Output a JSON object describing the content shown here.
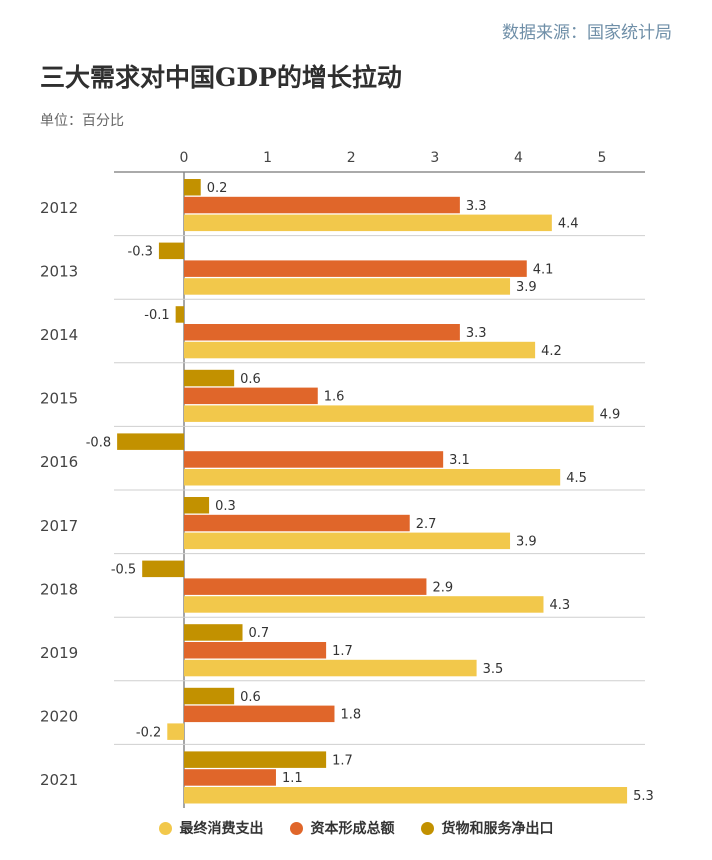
{
  "source": "数据来源：国家统计局",
  "chart_data": {
    "type": "bar",
    "orientation": "horizontal",
    "title": "三大需求对中国GDP的增长拉动",
    "unit_label": "单位：百分比",
    "categories": [
      "2012",
      "2013",
      "2014",
      "2015",
      "2016",
      "2017",
      "2018",
      "2019",
      "2020",
      "2021"
    ],
    "xlim": [
      -0.8,
      5.5
    ],
    "xticks": [
      0,
      1,
      2,
      3,
      4,
      5
    ],
    "series": [
      {
        "name": "货物和服务净出口",
        "color": "#c29100",
        "values": [
          0.2,
          -0.3,
          -0.1,
          0.6,
          -0.8,
          0.3,
          -0.5,
          0.7,
          0.6,
          1.7
        ]
      },
      {
        "name": "资本形成总额",
        "color": "#e0662a",
        "values": [
          3.3,
          4.1,
          3.3,
          1.6,
          3.1,
          2.7,
          2.9,
          1.7,
          1.8,
          1.1
        ]
      },
      {
        "name": "最终消费支出",
        "color": "#f2c84b",
        "values": [
          4.4,
          3.9,
          4.2,
          4.9,
          4.5,
          3.9,
          4.3,
          3.5,
          -0.2,
          5.3
        ]
      }
    ],
    "legend": [
      "最终消费支出",
      "资本形成总额",
      "货物和服务净出口"
    ],
    "legend_colors": [
      "#f2c84b",
      "#e0662a",
      "#c29100"
    ]
  }
}
